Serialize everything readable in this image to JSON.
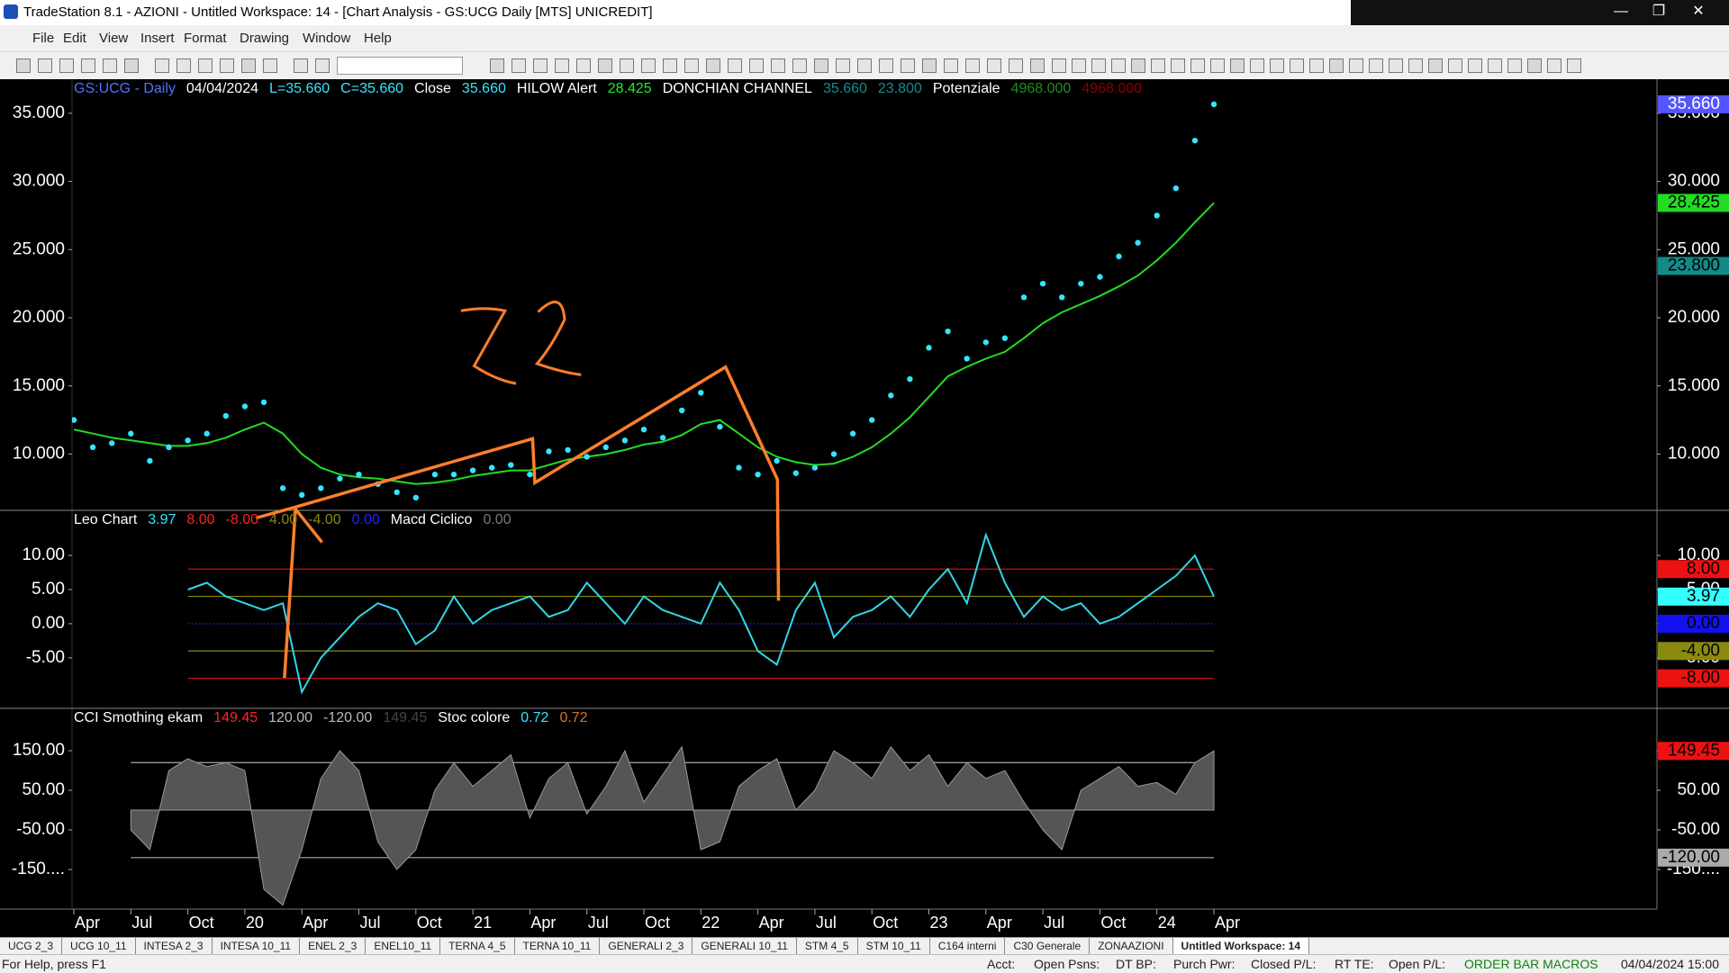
{
  "window": {
    "title": "TradeStation 8.1 - AZIONI - Untitled Workspace:  14 - [Chart Analysis - GS:UCG  Daily  [MTS] UNICREDIT]"
  },
  "menu": [
    "File",
    "Edit",
    "View",
    "Insert",
    "Format",
    "Drawing",
    "Window",
    "Help"
  ],
  "time_axis": {
    "labels": [
      "Apr",
      "Jul",
      "Oct",
      "20",
      "Apr",
      "Jul",
      "Oct",
      "21",
      "Apr",
      "Jul",
      "Oct",
      "22",
      "Apr",
      "Jul",
      "Oct",
      "23",
      "Apr",
      "Jul",
      "Oct",
      "24",
      "Apr"
    ]
  },
  "panes": [
    {
      "header": [
        {
          "text": "GS:UCG - Daily",
          "color": "#4f74ff"
        },
        {
          "text": "04/04/2024",
          "color": "#ffffff"
        },
        {
          "text": "L=35.660",
          "color": "#33e6ff"
        },
        {
          "text": "C=35.660",
          "color": "#33e6ff"
        },
        {
          "text": "Close",
          "color": "#ffffff"
        },
        {
          "text": "35.660",
          "color": "#33e6ff"
        },
        {
          "text": "HILOW Alert",
          "color": "#ffffff"
        },
        {
          "text": "28.425",
          "color": "#22ee22"
        },
        {
          "text": "DONCHIAN CHANNEL",
          "color": "#ffffff"
        },
        {
          "text": "35.660",
          "color": "#168c8c"
        },
        {
          "text": "23.800",
          "color": "#168c8c"
        },
        {
          "text": "Potenziale",
          "color": "#ffffff"
        },
        {
          "text": "4968.000",
          "color": "#1f8f1f"
        },
        {
          "text": "4968.000",
          "color": "#8b0000"
        }
      ],
      "ylim": [
        5.87,
        37.5
      ],
      "yticks": [
        {
          "value": 35,
          "label": "35.000"
        },
        {
          "value": 30,
          "label": "30.000"
        },
        {
          "value": 25,
          "label": "25.000"
        },
        {
          "value": 20,
          "label": "20.000"
        },
        {
          "value": 15,
          "label": "15.000"
        },
        {
          "value": 10,
          "label": "10.000"
        }
      ],
      "badges": [
        {
          "label": "35.660",
          "value": 35.66,
          "bg": "#5555ff",
          "fg": "#ffffff"
        },
        {
          "label": "28.425",
          "value": 28.425,
          "bg": "#22dd22",
          "fg": "#000000"
        },
        {
          "label": "23.800",
          "value": 23.8,
          "bg": "#138a8a",
          "fg": "#000000"
        }
      ],
      "levels": [],
      "series": [
        {
          "style": "line",
          "color": "#22dd22",
          "values": [
            11.8,
            11.5,
            11.2,
            11,
            10.8,
            10.6,
            10.6,
            10.8,
            11.2,
            11.8,
            12.3,
            11.5,
            10,
            9,
            8.5,
            8.3,
            8.2,
            8,
            7.8,
            7.9,
            8.1,
            8.4,
            8.6,
            8.8,
            8.8,
            9.2,
            9.6,
            9.8,
            10,
            10.3,
            10.7,
            10.9,
            11.4,
            12.2,
            12.5,
            11.5,
            10.5,
            9.8,
            9.4,
            9.2,
            9.3,
            9.8,
            10.5,
            11.5,
            12.7,
            14.2,
            15.7,
            16.4,
            17,
            17.5,
            18.5,
            19.6,
            20.4,
            21,
            21.6,
            22.3,
            23.1,
            24.2,
            25.5,
            27,
            28.425
          ]
        },
        {
          "style": "dots",
          "color": "#33e6ff",
          "values": [
            12.5,
            10.5,
            10.8,
            11.5,
            9.5,
            10.5,
            11,
            11.5,
            12.8,
            13.5,
            13.8,
            7.5,
            7,
            7.5,
            8.2,
            8.5,
            7.8,
            7.2,
            6.8,
            8.5,
            8.5,
            8.8,
            9,
            9.2,
            8.5,
            10.2,
            10.3,
            9.8,
            10.5,
            11,
            11.8,
            11.2,
            13.2,
            14.5,
            12,
            9,
            8.5,
            9.5,
            8.6,
            9,
            10,
            11.5,
            12.5,
            14.3,
            15.5,
            17.8,
            19,
            17,
            18.2,
            18.5,
            21.5,
            22.5,
            21.5,
            22.5,
            23,
            24.5,
            25.5,
            27.5,
            29.5,
            33,
            35.66
          ]
        }
      ]
    },
    {
      "header": [
        {
          "text": "Leo Chart",
          "color": "#ffffff"
        },
        {
          "text": "3.97",
          "color": "#33e6ff"
        },
        {
          "text": "8.00",
          "color": "#ff2222"
        },
        {
          "text": "-8.00",
          "color": "#ff2222"
        },
        {
          "text": "4.00",
          "color": "#8a8a10"
        },
        {
          "text": "-4.00",
          "color": "#8a8a10"
        },
        {
          "text": "0.00",
          "color": "#2222ff"
        },
        {
          "text": "Macd Ciclico",
          "color": "#ffffff"
        },
        {
          "text": "0.00",
          "color": "#777777"
        }
      ],
      "ylim": [
        -12.4,
        16.6
      ],
      "yticks": [
        {
          "value": 10,
          "label": "10.00"
        },
        {
          "value": 5,
          "label": "5.00"
        },
        {
          "value": 0,
          "label": "0.00"
        },
        {
          "value": -5,
          "label": "-5.00"
        }
      ],
      "badges": [
        {
          "label": "8.00",
          "value": 8,
          "bg": "#ee1111",
          "fg": "#000000"
        },
        {
          "label": "3.97",
          "value": 3.97,
          "bg": "#33ffff",
          "fg": "#000000"
        },
        {
          "label": "0.00",
          "value": 0,
          "bg": "#1111ee",
          "fg": "#000000"
        },
        {
          "label": "-4.00",
          "value": -4,
          "bg": "#8a8a10",
          "fg": "#000000"
        },
        {
          "label": "-8.00",
          "value": -8,
          "bg": "#ee1111",
          "fg": "#000000"
        }
      ],
      "levels": [
        {
          "value": 8,
          "color": "#cc1111"
        },
        {
          "value": 4,
          "color": "#8a8a10"
        },
        {
          "value": 0,
          "color": "#2222ff"
        },
        {
          "value": -4,
          "color": "#8a8a10"
        },
        {
          "value": -8,
          "color": "#cc1111"
        }
      ],
      "series": [
        {
          "style": "line",
          "color": "#33d6e6",
          "values": [
            null,
            null,
            null,
            null,
            null,
            null,
            5,
            6,
            4,
            3,
            2,
            3,
            -10,
            -5,
            -2,
            1,
            3,
            2,
            -3,
            -1,
            4,
            0,
            2,
            3,
            4,
            1,
            2,
            6,
            3,
            0,
            4,
            2,
            1,
            0,
            6,
            2,
            -4,
            -6,
            2,
            6,
            -2,
            1,
            2,
            4,
            1,
            5,
            8,
            3,
            13,
            6,
            1,
            4,
            2,
            3,
            0,
            1,
            3,
            5,
            7,
            10,
            3.97
          ]
        }
      ]
    },
    {
      "header": [
        {
          "text": "CCI Smothing ekam",
          "color": "#ffffff"
        },
        {
          "text": "149.45",
          "color": "#ff2222"
        },
        {
          "text": "120.00",
          "color": "#bbbbbb"
        },
        {
          "text": "-120.00",
          "color": "#bbbbbb"
        },
        {
          "text": "149.45",
          "color": "#444444"
        },
        {
          "text": "Stoc colore",
          "color": "#ffffff"
        },
        {
          "text": "0.72",
          "color": "#33e6ff"
        },
        {
          "text": "0.72",
          "color": "#e07020"
        }
      ],
      "ylim": [
        -250,
        257
      ],
      "yticks": [
        {
          "value": 150,
          "label": "150.00"
        },
        {
          "value": 50,
          "label": "50.00"
        },
        {
          "value": -50,
          "label": "-50.00"
        },
        {
          "value": -150,
          "label": "-150...."
        }
      ],
      "badges": [
        {
          "label": "149.45",
          "value": 149.45,
          "bg": "#ee1111",
          "fg": "#000000"
        },
        {
          "label": "-120.00",
          "value": -120,
          "bg": "#aaaaaa",
          "fg": "#000000"
        }
      ],
      "levels": [
        {
          "value": 120,
          "color": "#aaaaaa"
        },
        {
          "value": -120,
          "color": "#aaaaaa"
        }
      ],
      "series": [
        {
          "style": "area",
          "color": "#555555",
          "values": [
            null,
            null,
            null,
            -50,
            -100,
            100,
            130,
            110,
            120,
            100,
            -200,
            -240,
            -100,
            80,
            150,
            100,
            -80,
            -150,
            -100,
            50,
            120,
            60,
            100,
            140,
            -20,
            80,
            120,
            -10,
            60,
            150,
            20,
            90,
            160,
            -100,
            -80,
            60,
            100,
            130,
            0,
            50,
            150,
            120,
            80,
            160,
            100,
            140,
            60,
            120,
            80,
            100,
            20,
            -50,
            -100,
            50,
            80,
            110,
            60,
            70,
            40,
            120,
            149.45
          ]
        }
      ]
    }
  ],
  "tabs": [
    "UCG 2_3",
    "UCG 10_11",
    "INTESA 2_3",
    "INTESA 10_11",
    "ENEL 2_3",
    "ENEL10_11",
    "TERNA 4_5",
    "TERNA 10_11",
    "GENERALI 2_3",
    "GENERALI 10_11",
    "STM 4_5",
    "STM 10_11",
    "C164 interni",
    "C30 Generale",
    "ZONAAZIONI",
    "Untitled Workspace: 14"
  ],
  "status": [
    "For Help, press F1",
    "Acct:",
    "Open Psns:",
    "DT BP:",
    "Purch Pwr:",
    "Closed P/L:",
    "RT TE:",
    "Open P/L:",
    "ORDER BAR  MACROS",
    "04/04/2024 15:00"
  ]
}
